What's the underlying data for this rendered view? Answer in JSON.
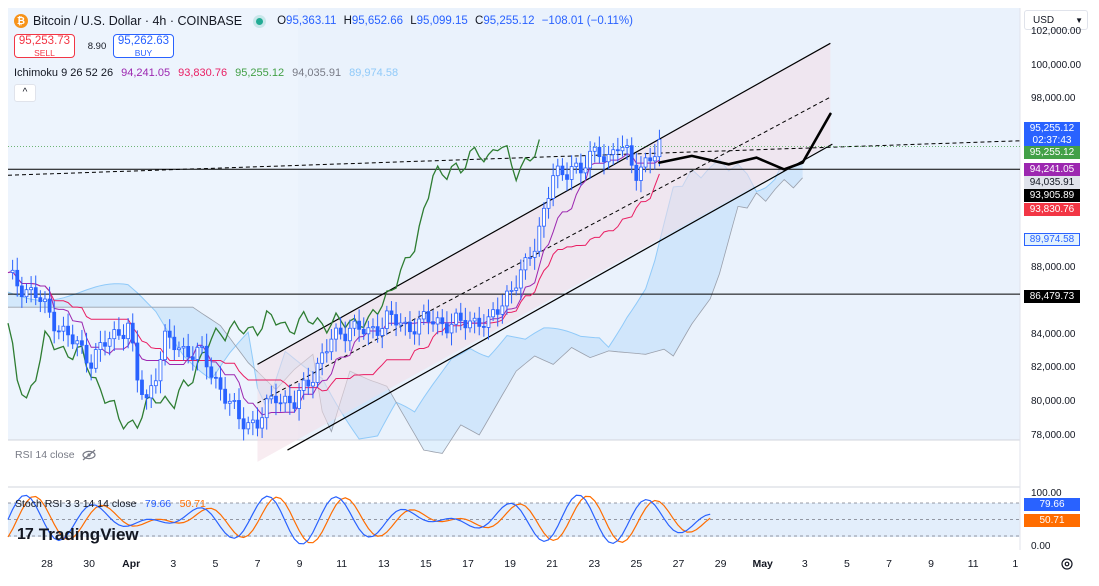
{
  "header": {
    "symbol": "Bitcoin / U.S. Dollar · 4h · COINBASE",
    "icon": "bitcoin-icon",
    "ohlc": [
      {
        "key": "O",
        "value": "95,363.11"
      },
      {
        "key": "H",
        "value": "95,652.66"
      },
      {
        "key": "L",
        "value": "95,099.15"
      },
      {
        "key": "C",
        "value": "95,255.12"
      }
    ],
    "change": "−108.01 (−0.11%)"
  },
  "trade": {
    "sell_price": "95,253.73",
    "sell_label": "SELL",
    "spread": "8.90",
    "buy_price": "95,262.63",
    "buy_label": "BUY"
  },
  "ichimoku": {
    "label": "Ichimoku 9 26 52 26",
    "values": [
      "94,241.05",
      "93,830.76",
      "95,255.12",
      "94,035.91",
      "89,974.58"
    ],
    "colors": [
      "#9c27b0",
      "#e91e63",
      "#43a047",
      "#787b86",
      "#90caf9"
    ]
  },
  "currency": "USD",
  "rsi": {
    "label": "RSI 14 close"
  },
  "stoch": {
    "label": "Stoch RSI 3 3 14 14 close",
    "k": "79.66",
    "d": "50.71"
  },
  "logo": "TradingView",
  "colors": {
    "up": "#2962ff",
    "down": "#2962ff",
    "tenkan": "#9c27b0",
    "kijun": "#e91e63",
    "chikou": "#2e7d32",
    "cloud": "#90caf9",
    "channel_fill": "#f3dce6",
    "stoch_k": "#2962ff",
    "stoch_d": "#ff6d00"
  },
  "chart_data": {
    "type": "candlestick",
    "symbol": "Bitcoin / U.S. Dollar",
    "timeframe": "4h",
    "exchange": "COINBASE",
    "y_axis_ticks": [
      "102,000.00",
      "100,000.00",
      "98,000.00",
      "88,000.00",
      "84,000.00",
      "82,000.00",
      "80,000.00",
      "78,000.00"
    ],
    "y_axis_tick_values": [
      102000,
      100000,
      98000,
      88000,
      84000,
      82000,
      80000,
      78000
    ],
    "ylim": [
      77800,
      103500
    ],
    "x_axis_ticks": [
      "28",
      "30",
      "Apr",
      "3",
      "5",
      "7",
      "9",
      "11",
      "13",
      "15",
      "17",
      "19",
      "21",
      "23",
      "25",
      "27",
      "29",
      "May",
      "3",
      "5",
      "7",
      "9",
      "11",
      "1"
    ],
    "price_labels": [
      {
        "value": "95,255.12",
        "extra": "02:37:43",
        "style": "last-price"
      },
      {
        "value": "95,255.12",
        "style": "chikou"
      },
      {
        "value": "94,241.05",
        "style": "tenkan"
      },
      {
        "value": "94,035.91",
        "style": "senkou-b"
      },
      {
        "value": "93,905.89",
        "style": "horizontal-line"
      },
      {
        "value": "93,830.76",
        "style": "kijun"
      },
      {
        "value": "89,974.58",
        "style": "senkou-a"
      },
      {
        "value": "86,479.73",
        "style": "horizontal-line"
      }
    ],
    "horizontal_lines": [
      93905.89,
      86479.73
    ],
    "close_path": [
      {
        "x": 0,
        "y": 87500
      },
      {
        "x": 6,
        "y": 86400
      },
      {
        "x": 12,
        "y": 84200
      },
      {
        "x": 18,
        "y": 82600
      },
      {
        "x": 22,
        "y": 83800
      },
      {
        "x": 26,
        "y": 84700
      },
      {
        "x": 28,
        "y": 81300
      },
      {
        "x": 30,
        "y": 80100
      },
      {
        "x": 34,
        "y": 83700
      },
      {
        "x": 38,
        "y": 83200
      },
      {
        "x": 42,
        "y": 82800
      },
      {
        "x": 46,
        "y": 80900
      },
      {
        "x": 50,
        "y": 79000
      },
      {
        "x": 54,
        "y": 78800
      },
      {
        "x": 58,
        "y": 80500
      },
      {
        "x": 62,
        "y": 79900
      },
      {
        "x": 66,
        "y": 81800
      },
      {
        "x": 70,
        "y": 83700
      },
      {
        "x": 74,
        "y": 84600
      },
      {
        "x": 78,
        "y": 84100
      },
      {
        "x": 82,
        "y": 85100
      },
      {
        "x": 86,
        "y": 84500
      },
      {
        "x": 90,
        "y": 84900
      },
      {
        "x": 94,
        "y": 84800
      },
      {
        "x": 98,
        "y": 84700
      },
      {
        "x": 102,
        "y": 85000
      },
      {
        "x": 104,
        "y": 84600
      },
      {
        "x": 108,
        "y": 86500
      },
      {
        "x": 112,
        "y": 88000
      },
      {
        "x": 114,
        "y": 89500
      },
      {
        "x": 116,
        "y": 91500
      },
      {
        "x": 118,
        "y": 93500
      },
      {
        "x": 120,
        "y": 93400
      },
      {
        "x": 122,
        "y": 94300
      },
      {
        "x": 124,
        "y": 93800
      },
      {
        "x": 126,
        "y": 94500
      },
      {
        "x": 128,
        "y": 95100
      },
      {
        "x": 130,
        "y": 94600
      },
      {
        "x": 132,
        "y": 95200
      },
      {
        "x": 134,
        "y": 94800
      },
      {
        "x": 136,
        "y": 93900
      },
      {
        "x": 138,
        "y": 94200
      },
      {
        "x": 140,
        "y": 94700
      },
      {
        "x": 141,
        "y": 95255
      }
    ],
    "projection_path": [
      {
        "x": 141,
        "y": 94300
      },
      {
        "x": 148,
        "y": 94700
      },
      {
        "x": 156,
        "y": 94200
      },
      {
        "x": 162,
        "y": 94600
      },
      {
        "x": 168,
        "y": 93900
      },
      {
        "x": 172,
        "y": 94300
      },
      {
        "x": 178,
        "y": 97200
      }
    ],
    "channel": {
      "x0": 54,
      "x1": 178,
      "upper": [
        82300,
        101400
      ],
      "lower": [
        76500,
        95400
      ],
      "mid_dash": [
        80000,
        98200
      ]
    },
    "series": [
      {
        "name": "Stoch RSI K",
        "value": 79.66
      },
      {
        "name": "Stoch RSI D",
        "value": 50.71
      }
    ],
    "stoch_axis_ticks": [
      "100.00",
      "0.00"
    ],
    "rsi_label": "RSI 14 close"
  }
}
